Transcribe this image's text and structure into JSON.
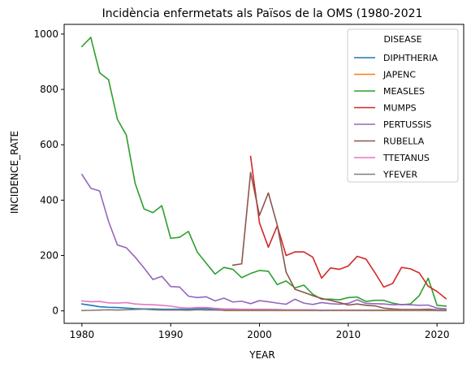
{
  "chart_data": {
    "type": "line",
    "title": "Incidència enfermetats als Països de la OMS (1980-2021",
    "xlabel": "YEAR",
    "ylabel": "INCIDENCE_RATE",
    "xlim": [
      1978,
      2023
    ],
    "ylim": [
      -45,
      1035
    ],
    "xticks": [
      1980,
      1990,
      2000,
      2010,
      2020
    ],
    "yticks": [
      0,
      200,
      400,
      600,
      800,
      1000
    ],
    "grid": false,
    "legend": {
      "title": "DISEASE",
      "position": "top-right"
    },
    "series": [
      {
        "name": "DIPHTHERIA",
        "color": "#1f77b4",
        "x": [
          1980,
          1981,
          1982,
          1983,
          1984,
          1985,
          1986,
          1987,
          1988,
          1989,
          1990,
          1991,
          1992,
          1993,
          1994,
          1995,
          1996,
          1997,
          1998,
          1999,
          2000,
          2001,
          2002,
          2003,
          2004,
          2005,
          2006,
          2007,
          2008,
          2009,
          2010,
          2011,
          2012,
          2013,
          2014,
          2015,
          2016,
          2017,
          2018,
          2019,
          2020,
          2021
        ],
        "y": [
          25,
          20,
          15,
          13,
          12,
          10,
          8,
          7,
          7,
          6,
          6,
          6,
          6,
          7,
          8,
          6,
          5,
          4,
          3,
          3,
          3,
          3,
          3,
          3,
          2,
          2,
          2,
          2,
          2,
          2,
          2,
          2,
          2,
          2,
          2,
          2,
          2,
          2,
          2,
          2,
          2,
          2
        ]
      },
      {
        "name": "JAPENC",
        "color": "#ff7f0e",
        "x": [
          1996,
          1997,
          1998,
          1999,
          2000,
          2001,
          2002,
          2003,
          2004,
          2005,
          2006,
          2007,
          2008,
          2009,
          2010,
          2011,
          2012,
          2013,
          2014,
          2015,
          2016,
          2017,
          2018,
          2019,
          2020,
          2021
        ],
        "y": [
          1,
          1,
          1,
          1,
          1,
          1,
          1,
          1,
          1,
          1,
          1,
          1,
          1,
          1,
          1,
          1,
          1,
          1,
          1,
          1,
          1,
          1,
          1,
          1,
          1,
          1
        ]
      },
      {
        "name": "MEASLES",
        "color": "#2ca02c",
        "x": [
          1980,
          1981,
          1982,
          1983,
          1984,
          1985,
          1986,
          1987,
          1988,
          1989,
          1990,
          1991,
          1992,
          1993,
          1994,
          1995,
          1996,
          1997,
          1998,
          1999,
          2000,
          2001,
          2002,
          2003,
          2004,
          2005,
          2006,
          2007,
          2008,
          2009,
          2010,
          2011,
          2012,
          2013,
          2014,
          2015,
          2016,
          2017,
          2018,
          2019,
          2020,
          2021
        ],
        "y": [
          955,
          988,
          860,
          835,
          692,
          635,
          460,
          368,
          355,
          380,
          262,
          266,
          287,
          212,
          172,
          133,
          157,
          150,
          120,
          135,
          146,
          143,
          95,
          108,
          83,
          93,
          60,
          42,
          42,
          40,
          48,
          50,
          34,
          38,
          38,
          28,
          22,
          25,
          55,
          118,
          20,
          17
        ]
      },
      {
        "name": "MUMPS",
        "color": "#d62728",
        "x": [
          1999,
          2000,
          2001,
          2002,
          2003,
          2004,
          2005,
          2006,
          2007,
          2008,
          2009,
          2010,
          2011,
          2012,
          2013,
          2014,
          2015,
          2016,
          2017,
          2018,
          2019,
          2020,
          2021
        ],
        "y": [
          558,
          318,
          230,
          307,
          200,
          213,
          213,
          194,
          118,
          155,
          150,
          162,
          197,
          187,
          138,
          86,
          99,
          157,
          152,
          137,
          89,
          70,
          44
        ]
      },
      {
        "name": "PERTUSSIS",
        "color": "#9467bd",
        "x": [
          1980,
          1981,
          1982,
          1983,
          1984,
          1985,
          1986,
          1987,
          1988,
          1989,
          1990,
          1991,
          1992,
          1993,
          1994,
          1995,
          1996,
          1997,
          1998,
          1999,
          2000,
          2001,
          2002,
          2003,
          2004,
          2005,
          2006,
          2007,
          2008,
          2009,
          2010,
          2011,
          2012,
          2013,
          2014,
          2015,
          2016,
          2017,
          2018,
          2019,
          2020,
          2021
        ],
        "y": [
          493,
          443,
          433,
          323,
          238,
          228,
          194,
          155,
          113,
          125,
          88,
          86,
          53,
          48,
          51,
          36,
          46,
          32,
          35,
          26,
          37,
          33,
          28,
          24,
          42,
          28,
          23,
          30,
          26,
          24,
          27,
          40,
          27,
          26,
          25,
          22,
          23,
          22,
          20,
          21,
          10,
          7
        ]
      },
      {
        "name": "RUBELLA",
        "color": "#8c564b",
        "x": [
          1997,
          1998,
          1999,
          2000,
          2001,
          2002,
          2003,
          2004,
          2005,
          2006,
          2007,
          2008,
          2009,
          2010,
          2011,
          2012,
          2013,
          2014,
          2015,
          2016,
          2017,
          2018,
          2019,
          2020,
          2021
        ],
        "y": [
          165,
          170,
          500,
          345,
          426,
          310,
          140,
          78,
          67,
          55,
          45,
          38,
          30,
          21,
          25,
          20,
          18,
          10,
          7,
          5,
          5,
          5,
          6,
          4,
          3
        ]
      },
      {
        "name": "TTETANUS",
        "color": "#e377c2",
        "x": [
          1980,
          1981,
          1982,
          1983,
          1984,
          1985,
          1986,
          1987,
          1988,
          1989,
          1990,
          1991,
          1992,
          1993,
          1994,
          1995,
          1996,
          1997,
          1998,
          1999,
          2000,
          2001,
          2002,
          2003,
          2004,
          2005,
          2006,
          2007,
          2008,
          2009,
          2010,
          2011,
          2012,
          2013,
          2014,
          2015,
          2016,
          2017,
          2018,
          2019,
          2020,
          2021
        ],
        "y": [
          36,
          33,
          34,
          29,
          28,
          30,
          25,
          23,
          22,
          20,
          17,
          12,
          10,
          12,
          12,
          9,
          7,
          7,
          6,
          6,
          6,
          6,
          5,
          4,
          4,
          4,
          4,
          3,
          3,
          3,
          3,
          3,
          3,
          3,
          3,
          3,
          3,
          3,
          3,
          2,
          2,
          2
        ]
      },
      {
        "name": "YFEVER",
        "color": "#7f7f7f",
        "x": [
          1980,
          1981,
          1982,
          1983,
          1984,
          1985,
          1986,
          1987,
          1988,
          1989,
          1990,
          1991,
          1992,
          1993,
          1994,
          1995,
          1996,
          1997,
          1998,
          1999,
          2000,
          2001,
          2002,
          2003,
          2004,
          2005,
          2006,
          2007,
          2008,
          2009,
          2010,
          2011,
          2012,
          2013,
          2014,
          2015,
          2016,
          2017,
          2018,
          2019,
          2020,
          2021
        ],
        "y": [
          1,
          2,
          3,
          4,
          3,
          4,
          5,
          6,
          4,
          3,
          3,
          3,
          2,
          4,
          3,
          3,
          2,
          2,
          2,
          2,
          2,
          2,
          2,
          2,
          2,
          2,
          2,
          1,
          2,
          2,
          2,
          2,
          2,
          2,
          2,
          2,
          2,
          2,
          2,
          2,
          1,
          1
        ]
      }
    ]
  }
}
